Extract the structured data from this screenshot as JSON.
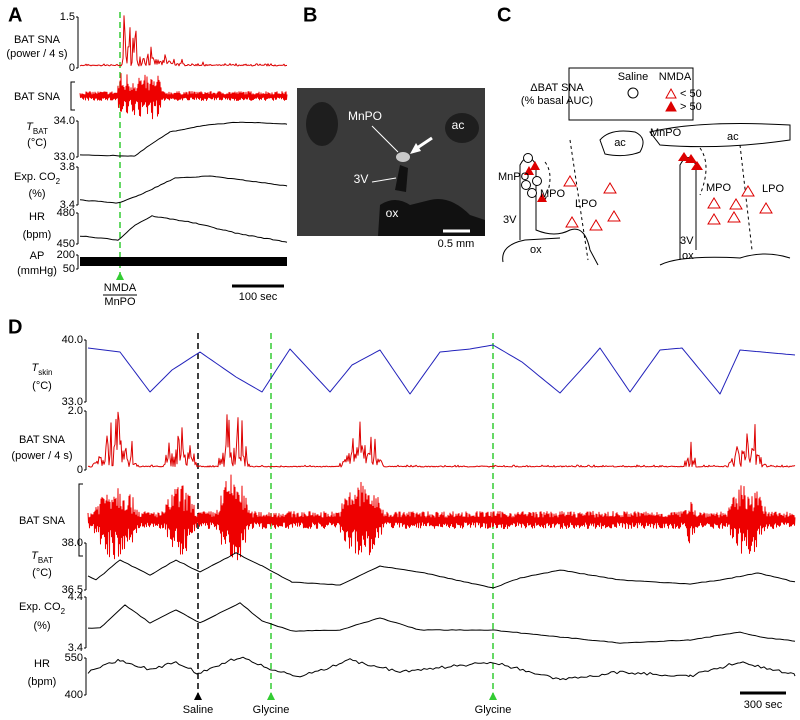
{
  "panel_a": {
    "label": "A",
    "rows": [
      {
        "name": "BAT SNA",
        "unit": "(power / 4 s)",
        "ticks": [
          "1.5",
          "0"
        ]
      },
      {
        "name": "BAT SNA"
      },
      {
        "name": "T",
        "sub": "BAT",
        "unit": "(°C)",
        "ticks": [
          "34.0",
          "33.0"
        ]
      },
      {
        "name": "Exp. CO",
        "sub": "2",
        "unit": "(%)",
        "ticks": [
          "3.8",
          "3.4"
        ]
      },
      {
        "name": "HR",
        "unit": "(bpm)",
        "ticks": [
          "480",
          "450"
        ]
      },
      {
        "name": "AP",
        "unit": "(mmHg)",
        "ticks": [
          "200",
          "50"
        ]
      }
    ],
    "stimulus": {
      "drug": "NMDA",
      "site": "MnPO"
    },
    "scale_bar": "100 sec"
  },
  "panel_b": {
    "label": "B",
    "labels": [
      "MnPO",
      "ac",
      "3V",
      "ox"
    ],
    "scale_bar": "0.5 mm"
  },
  "panel_c": {
    "label": "C",
    "legend": {
      "title": "ΔBAT SNA",
      "subtitle": "(% basal AUC)",
      "columns": [
        "Saline",
        "NMDA"
      ],
      "entries": [
        "< 50",
        "> 50"
      ]
    },
    "left_section": [
      "ac",
      "MnPO",
      "MPO",
      "LPO",
      "3V",
      "ox"
    ],
    "right_section": [
      "MnPO",
      "ac",
      "MPO",
      "LPO",
      "3V",
      "ox"
    ]
  },
  "panel_d": {
    "label": "D",
    "rows": [
      {
        "name": "T",
        "sub": "skin",
        "unit": "(°C)",
        "ticks": [
          "40.0",
          "33.0"
        ]
      },
      {
        "name": "BAT SNA",
        "unit": "(power / 4 s)",
        "ticks": [
          "2.0",
          "0"
        ]
      },
      {
        "name": "BAT SNA"
      },
      {
        "name": "T",
        "sub": "BAT",
        "unit": "(°C)",
        "ticks": [
          "38.0",
          "36.5"
        ]
      },
      {
        "name": "Exp. CO",
        "sub": "2",
        "unit": "(%)",
        "ticks": [
          "4.4",
          "3.4"
        ]
      },
      {
        "name": "HR",
        "unit": "(bpm)",
        "ticks": [
          "550",
          "400"
        ]
      }
    ],
    "markers": [
      "Saline",
      "Glycine",
      "Glycine"
    ],
    "scale_bar": "300 sec"
  }
}
